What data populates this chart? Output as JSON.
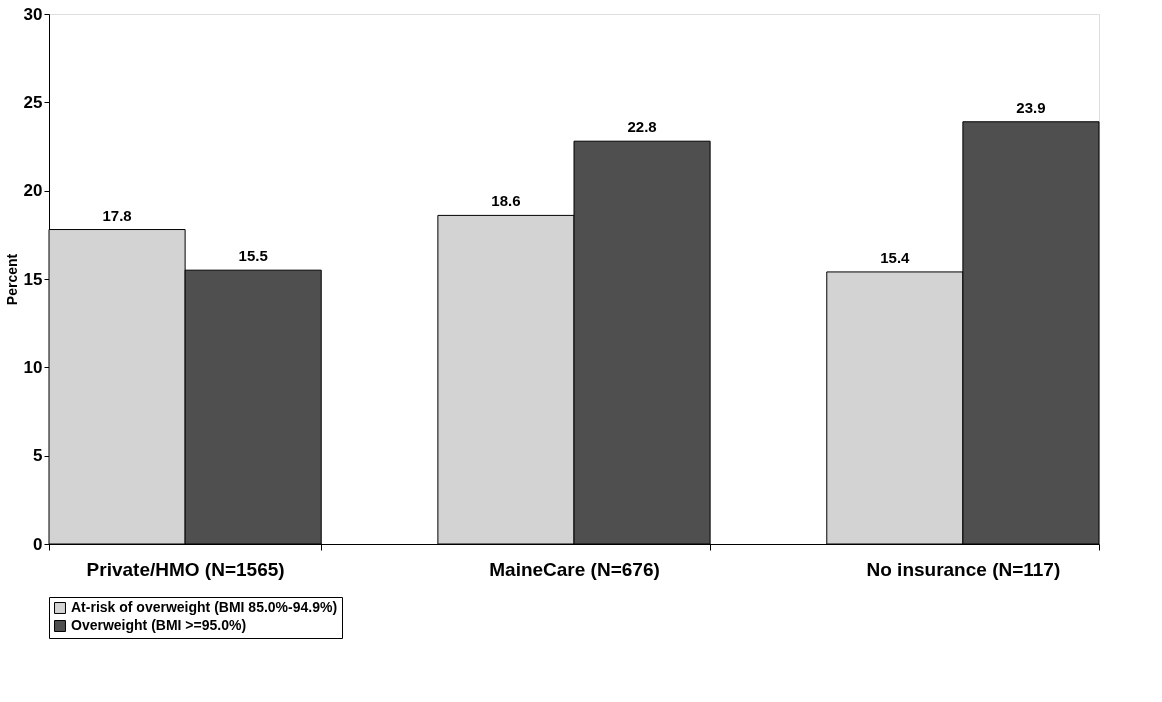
{
  "chart_data": {
    "type": "bar",
    "ylabel": "Percent",
    "categories": [
      "Private/HMO (N=1565)",
      "MaineCare (N=676)",
      "No insurance (N=117)"
    ],
    "series": [
      {
        "name": "At-risk of overweight (BMI 85.0%-94.9%)",
        "color": "#d3d3d3",
        "values": [
          17.8,
          18.6,
          15.4
        ]
      },
      {
        "name": "Overweight (BMI >=95.0%)",
        "color": "#4f4f4f",
        "values": [
          15.5,
          22.8,
          23.9
        ]
      }
    ],
    "ylim": [
      0,
      30
    ],
    "yticks": [
      0,
      5,
      10,
      15,
      20,
      25,
      30
    ],
    "grid": false,
    "legend": "bottom",
    "data_labels": true
  }
}
